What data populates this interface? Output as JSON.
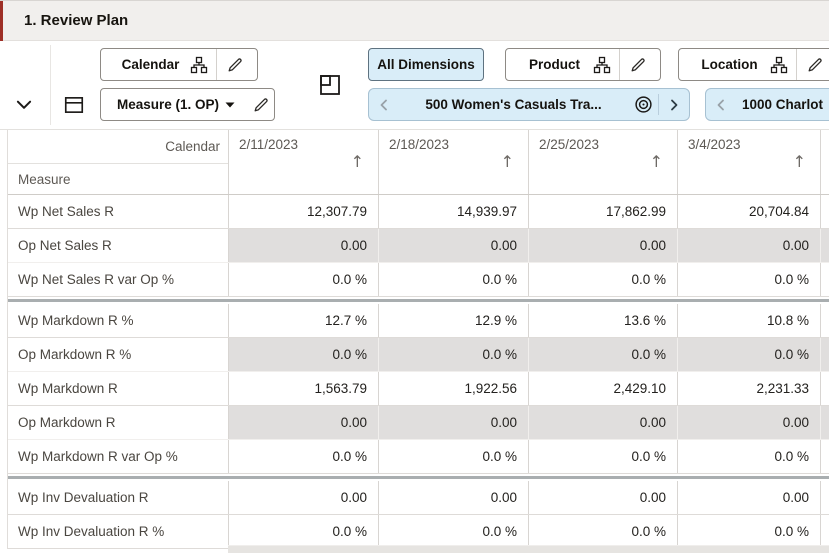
{
  "title": "1. Review Plan",
  "colors": {
    "accent_bar": "#9e2f26",
    "highlight_blue": "#d9edf8",
    "shaded_cell": "#e0dedd",
    "group_separator": "#a9aeb0"
  },
  "toolbar": {
    "rows_axis_label": "Calendar",
    "cols_axis_label": "Measure (1. OP)",
    "all_dimensions_label": "All Dimensions",
    "product_label": "Product",
    "location_label": "Location",
    "product_page_value": "500 Women's Casuals Tra...",
    "location_page_value": "1000 Charlot",
    "icons": {
      "collapse": "chevron-down",
      "rows_axis": "rows-layout",
      "cols_axis": "columns-layout",
      "page_axis": "page-layout",
      "hierarchy": "org-chart",
      "edit": "pencil",
      "dropdown": "caret-down",
      "scope": "target",
      "prev": "chevron-left",
      "next": "chevron-right"
    }
  },
  "table": {
    "corner": {
      "row_dim": "Calendar",
      "col_dim": "Measure"
    },
    "sort_glyph": "↑",
    "columns": [
      "2/11/2023",
      "2/18/2023",
      "2/25/2023",
      "3/4/2023"
    ],
    "rows": [
      {
        "label": "Wp Net Sales R",
        "values": [
          "12,307.79",
          "14,939.97",
          "17,862.99",
          "20,704.84"
        ],
        "shaded": false,
        "group_start": false
      },
      {
        "label": "Op Net Sales R",
        "values": [
          "0.00",
          "0.00",
          "0.00",
          "0.00"
        ],
        "shaded": true,
        "group_start": false
      },
      {
        "label": "Wp Net Sales R var Op %",
        "values": [
          "0.0 %",
          "0.0 %",
          "0.0 %",
          "0.0 %"
        ],
        "shaded": false,
        "group_start": false
      },
      {
        "label": "Wp Markdown R %",
        "values": [
          "12.7 %",
          "12.9 %",
          "13.6 %",
          "10.8 %"
        ],
        "shaded": false,
        "group_start": true
      },
      {
        "label": "Op Markdown R %",
        "values": [
          "0.0 %",
          "0.0 %",
          "0.0 %",
          "0.0 %"
        ],
        "shaded": true,
        "group_start": false
      },
      {
        "label": "Wp Markdown R",
        "values": [
          "1,563.79",
          "1,922.56",
          "2,429.10",
          "2,231.33"
        ],
        "shaded": false,
        "group_start": false
      },
      {
        "label": "Op Markdown R",
        "values": [
          "0.00",
          "0.00",
          "0.00",
          "0.00"
        ],
        "shaded": true,
        "group_start": false
      },
      {
        "label": "Wp Markdown R var Op %",
        "values": [
          "0.0 %",
          "0.0 %",
          "0.0 %",
          "0.0 %"
        ],
        "shaded": false,
        "group_start": false
      },
      {
        "label": "Wp Inv Devaluation R",
        "values": [
          "0.00",
          "0.00",
          "0.00",
          "0.00"
        ],
        "shaded": false,
        "group_start": true
      },
      {
        "label": "Wp Inv Devaluation R %",
        "values": [
          "0.0 %",
          "0.0 %",
          "0.0 %",
          "0.0 %"
        ],
        "shaded": false,
        "group_start": false
      }
    ]
  }
}
